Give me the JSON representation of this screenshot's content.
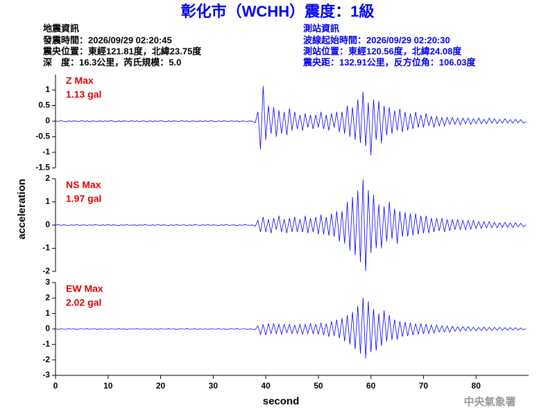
{
  "title": "彰化市（WCHH）震度：1級",
  "left_info": [
    "地震資訊",
    "發震時間：2026/09/29 02:20:45",
    "震央位置：東經121.81度，北緯23.75度",
    "深　度：16.3公里，芮氏規模：5.0"
  ],
  "right_info": [
    "測站資訊",
    "波線起始時間：2026/09/29 02:20:30",
    "測站位置：東經120.56度，北緯24.08度",
    "震央距：132.91公里，反方位角：106.03度"
  ],
  "footer": "中央氣象署",
  "chart_data": {
    "type": "line",
    "color": "#0000ff",
    "xlabel": "second",
    "ylabel": "acceleration",
    "xlim": [
      0,
      90
    ],
    "xticks": [
      0,
      10,
      20,
      30,
      40,
      50,
      60,
      70,
      80
    ],
    "x": [
      0,
      0.5,
      1,
      1.5,
      2,
      2.5,
      3,
      3.5,
      4,
      4.5,
      5,
      5.5,
      6,
      6.5,
      7,
      7.5,
      8,
      8.5,
      9,
      9.5,
      10,
      10.5,
      11,
      11.5,
      12,
      12.5,
      13,
      13.5,
      14,
      14.5,
      15,
      15.5,
      16,
      16.5,
      17,
      17.5,
      18,
      18.5,
      19,
      19.5,
      20,
      20.5,
      21,
      21.5,
      22,
      22.5,
      23,
      23.5,
      24,
      24.5,
      25,
      25.5,
      26,
      26.5,
      27,
      27.5,
      28,
      28.5,
      29,
      29.5,
      30,
      30.5,
      31,
      31.5,
      32,
      32.5,
      33,
      33.5,
      34,
      34.5,
      35,
      35.5,
      36,
      36.5,
      37,
      37.5,
      38,
      38.5,
      39,
      39.5,
      40,
      40.5,
      41,
      41.5,
      42,
      42.5,
      43,
      43.5,
      44,
      44.5,
      45,
      45.5,
      46,
      46.5,
      47,
      47.5,
      48,
      48.5,
      49,
      49.5,
      50,
      50.5,
      51,
      51.5,
      52,
      52.5,
      53,
      53.5,
      54,
      54.5,
      55,
      55.5,
      56,
      56.5,
      57,
      57.5,
      58,
      58.5,
      59,
      59.5,
      60,
      60.5,
      61,
      61.5,
      62,
      62.5,
      63,
      63.5,
      64,
      64.5,
      65,
      65.5,
      66,
      66.5,
      67,
      67.5,
      68,
      68.5,
      69,
      69.5,
      70,
      70.5,
      71,
      71.5,
      72,
      72.5,
      73,
      73.5,
      74,
      74.5,
      75,
      75.5,
      76,
      76.5,
      77,
      77.5,
      78,
      78.5,
      79,
      79.5,
      80,
      80.5,
      81,
      81.5,
      82,
      82.5,
      83,
      83.5,
      84,
      84.5,
      85,
      85.5,
      86,
      86.5,
      87,
      87.5,
      88,
      88.5,
      89,
      89.5
    ],
    "panels": [
      {
        "name": "Z Max",
        "max_label": "1.13 gal",
        "ylim": [
          -1.5,
          1.5
        ],
        "yticks": [
          -1.5,
          -1,
          -0.5,
          0,
          0.5,
          1
        ],
        "values": [
          0.01,
          -0.01,
          0.02,
          0,
          -0.02,
          0.01,
          -0.01,
          0.01,
          0,
          -0.01,
          0.02,
          -0.01,
          0.01,
          -0.02,
          0.01,
          0,
          -0.01,
          0.01,
          -0.01,
          0.01,
          -0.01,
          0.02,
          0,
          -0.02,
          0.01,
          -0.01,
          0.01,
          0,
          -0.01,
          0.02,
          -0.01,
          0.01,
          -0.02,
          0.01,
          0,
          -0.01,
          0.01,
          -0.01,
          0.01,
          -0.01,
          0.02,
          0,
          -0.02,
          0.01,
          -0.01,
          0.01,
          0,
          -0.01,
          0.02,
          -0.01,
          0.01,
          -0.02,
          0.01,
          0,
          -0.01,
          0.01,
          -0.01,
          0.01,
          -0.01,
          0.02,
          0,
          -0.02,
          0.01,
          -0.01,
          0.01,
          0,
          -0.01,
          0.02,
          -0.01,
          0.01,
          -0.02,
          0.01,
          0,
          -0.01,
          0.01,
          -0.01,
          -0.05,
          0.3,
          -0.9,
          1.13,
          -0.6,
          0.5,
          -0.4,
          0.45,
          -0.5,
          0.35,
          -0.4,
          0.3,
          -0.45,
          0.4,
          -0.3,
          0.3,
          -0.25,
          0.2,
          -0.3,
          0.25,
          -0.2,
          0.2,
          -0.25,
          0.2,
          -0.2,
          0.3,
          -0.25,
          0.2,
          -0.3,
          0.25,
          -0.2,
          0.3,
          -0.35,
          0.3,
          -0.4,
          0.5,
          -0.5,
          0.45,
          -0.6,
          0.7,
          -0.7,
          0.95,
          -0.8,
          0.6,
          -1.1,
          0.7,
          -0.6,
          0.65,
          -0.7,
          0.5,
          -0.45,
          0.45,
          -0.4,
          0.35,
          -0.3,
          0.4,
          -0.35,
          0.3,
          -0.3,
          0.25,
          -0.25,
          0.3,
          -0.2,
          0.2,
          -0.2,
          0.25,
          -0.15,
          0.15,
          -0.2,
          0.15,
          -0.15,
          0.12,
          -0.15,
          0.12,
          -0.1,
          0.12,
          -0.1,
          0.1,
          -0.12,
          0.1,
          -0.08,
          0.1,
          -0.1,
          0.08,
          -0.08,
          0.1,
          -0.08,
          0.06,
          -0.08,
          0.1,
          -0.06,
          0.08,
          -0.08,
          0.06,
          -0.06,
          0.08,
          -0.06,
          0.05,
          -0.06,
          0.06,
          -0.05,
          0.05,
          -0.06,
          -0.02
        ]
      },
      {
        "name": "NS Max",
        "max_label": "1.97 gal",
        "ylim": [
          -2,
          2
        ],
        "yticks": [
          -2,
          -1,
          0,
          1,
          2
        ],
        "values": [
          -0.01,
          0.02,
          -0.01,
          0.01,
          0,
          -0.02,
          0.01,
          -0.01,
          0.02,
          -0.01,
          0,
          0.01,
          -0.02,
          0.01,
          -0.01,
          0.02,
          0,
          -0.01,
          0.01,
          -0.01,
          0.02,
          -0.01,
          0.01,
          0,
          -0.02,
          0.01,
          -0.01,
          0.02,
          -0.01,
          0,
          0.01,
          -0.02,
          0.01,
          -0.01,
          0.02,
          0,
          -0.01,
          0.01,
          -0.01,
          0.02,
          -0.01,
          0.01,
          0,
          -0.02,
          0.01,
          -0.01,
          0.02,
          -0.01,
          0,
          0.01,
          -0.02,
          0.01,
          -0.01,
          0.02,
          0,
          -0.01,
          0.01,
          -0.01,
          0.02,
          -0.01,
          0.01,
          0,
          -0.02,
          0.01,
          -0.01,
          0.02,
          -0.01,
          0,
          0.01,
          -0.02,
          0.01,
          -0.01,
          0.02,
          0,
          -0.01,
          0.01,
          -0.05,
          0.2,
          -0.3,
          0.35,
          -0.3,
          0.25,
          -0.35,
          0.3,
          -0.2,
          0.4,
          -0.3,
          0.25,
          -0.35,
          0.3,
          -0.3,
          0.35,
          -0.3,
          0.25,
          -0.3,
          0.4,
          -0.35,
          0.3,
          -0.3,
          0.35,
          -0.4,
          0.45,
          -0.4,
          0.35,
          -0.45,
          0.5,
          -0.5,
          0.6,
          -0.7,
          0.6,
          -0.8,
          1.0,
          -1.1,
          1.2,
          -1.3,
          1.5,
          -1.6,
          1.97,
          -1.98,
          1.5,
          -1.2,
          1.3,
          -1.0,
          0.9,
          -1.0,
          0.8,
          -0.7,
          1.0,
          -0.6,
          0.7,
          -0.8,
          0.6,
          -0.5,
          0.55,
          -0.5,
          0.5,
          -0.45,
          0.5,
          -0.4,
          0.4,
          -0.35,
          0.4,
          -0.35,
          0.3,
          -0.3,
          0.3,
          -0.25,
          0.3,
          -0.3,
          0.25,
          -0.25,
          0.25,
          -0.2,
          0.25,
          -0.2,
          0.2,
          -0.2,
          0.2,
          -0.18,
          0.2,
          -0.15,
          0.15,
          -0.15,
          0.15,
          -0.12,
          0.15,
          -0.12,
          0.12,
          -0.12,
          0.1,
          -0.1,
          0.12,
          -0.1,
          0.1,
          -0.1,
          0.1,
          -0.08,
          0.08,
          -0.08,
          0.02
        ]
      },
      {
        "name": "EW Max",
        "max_label": "2.02 gal",
        "ylim": [
          -3,
          3
        ],
        "yticks": [
          -3,
          -2,
          -1,
          0,
          1,
          2,
          3
        ],
        "values": [
          0.01,
          -0.02,
          0.01,
          0,
          -0.01,
          0.02,
          -0.01,
          0.01,
          -0.02,
          0,
          0.01,
          -0.01,
          0.02,
          -0.01,
          0,
          0.01,
          -0.02,
          0.01,
          -0.01,
          0.01,
          -0.02,
          0.01,
          0,
          -0.01,
          0.02,
          -0.01,
          0.01,
          -0.02,
          0,
          0.01,
          -0.01,
          0.02,
          -0.01,
          0,
          0.01,
          -0.02,
          0.01,
          -0.01,
          0.01,
          -0.02,
          0.01,
          0,
          -0.01,
          0.02,
          -0.01,
          0.01,
          -0.02,
          0,
          0.01,
          -0.01,
          0.02,
          -0.01,
          0,
          0.01,
          -0.02,
          0.01,
          -0.01,
          0.01,
          -0.02,
          0.01,
          0,
          -0.01,
          0.02,
          -0.01,
          0.01,
          -0.02,
          0,
          0.01,
          -0.01,
          0.02,
          -0.01,
          0,
          0.01,
          -0.02,
          0.01,
          -0.01,
          -0.05,
          0.2,
          -0.35,
          0.3,
          -0.4,
          0.35,
          -0.3,
          0.35,
          -0.3,
          0.3,
          -0.35,
          0.3,
          -0.25,
          0.3,
          -0.3,
          0.25,
          -0.3,
          0.3,
          -0.35,
          0.3,
          -0.3,
          0.35,
          -0.3,
          0.3,
          -0.35,
          0.4,
          -0.4,
          0.35,
          -0.5,
          0.5,
          -0.45,
          0.6,
          -0.6,
          0.7,
          -0.8,
          0.9,
          -1.0,
          1.1,
          -1.3,
          1.5,
          -1.6,
          2.02,
          -1.9,
          1.8,
          -1.5,
          1.3,
          -1.4,
          1.0,
          -1.1,
          1.2,
          -0.8,
          0.9,
          -0.7,
          0.6,
          -0.7,
          0.5,
          -0.5,
          0.45,
          -0.45,
          0.4,
          -0.4,
          0.35,
          -0.35,
          0.35,
          -0.3,
          0.3,
          -0.3,
          0.25,
          -0.25,
          0.25,
          -0.2,
          0.2,
          -0.2,
          0.2,
          -0.2,
          0.18,
          -0.15,
          0.15,
          -0.15,
          0.15,
          -0.12,
          0.15,
          -0.12,
          0.12,
          -0.12,
          0.1,
          -0.1,
          0.12,
          -0.1,
          0.1,
          -0.1,
          0.1,
          -0.08,
          0.1,
          -0.08,
          0.08,
          -0.08,
          0.08,
          -0.06,
          0.08,
          -0.06,
          0.06,
          -0.06,
          0.02
        ]
      }
    ]
  }
}
